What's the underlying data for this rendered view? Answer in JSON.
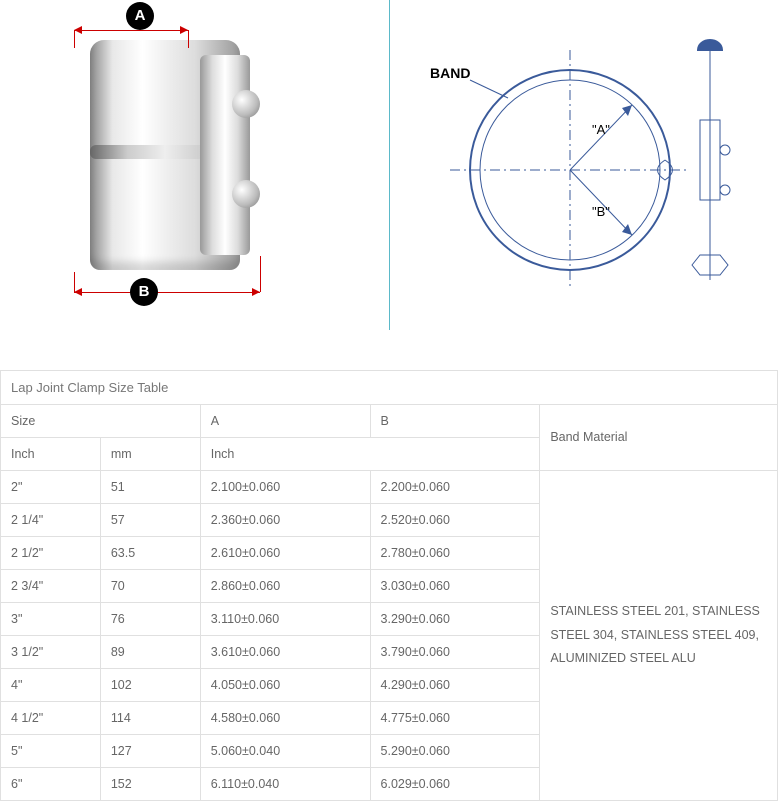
{
  "diagram": {
    "labelA": "A",
    "labelB": "B",
    "bandLabel": "BAND",
    "innerA": "\"A\"",
    "innerB": "\"B\"",
    "arrow_color": "#c00",
    "label_bg": "#000",
    "label_fg": "#fff",
    "diagram_stroke": "#3a5a9a",
    "divider_color": "#5bb9c9"
  },
  "table": {
    "title": "Lap Joint Clamp Size Table",
    "headers": {
      "size": "Size",
      "A": "A",
      "B": "B",
      "material": "Band Material",
      "inch": "Inch",
      "mm": "mm",
      "inch2": "Inch"
    },
    "material": "STAINLESS STEEL 201, STAINLESS STEEL 304, STAINLESS STEEL 409, ALUMINIZED STEEL ALU",
    "rows": [
      {
        "inch": "2\"",
        "mm": "51",
        "A": "2.100±0.060",
        "B": "2.200±0.060"
      },
      {
        "inch": "2 1/4\"",
        "mm": "57",
        "A": "2.360±0.060",
        "B": "2.520±0.060"
      },
      {
        "inch": "2 1/2\"",
        "mm": "63.5",
        "A": "2.610±0.060",
        "B": "2.780±0.060"
      },
      {
        "inch": "2 3/4\"",
        "mm": "70",
        "A": "2.860±0.060",
        "B": "3.030±0.060"
      },
      {
        "inch": "3\"",
        "mm": "76",
        "A": "3.110±0.060",
        "B": "3.290±0.060"
      },
      {
        "inch": "3 1/2\"",
        "mm": "89",
        "A": "3.610±0.060",
        "B": "3.790±0.060"
      },
      {
        "inch": "4\"",
        "mm": "102",
        "A": "4.050±0.060",
        "B": "4.290±0.060"
      },
      {
        "inch": "4 1/2\"",
        "mm": "114",
        "A": "4.580±0.060",
        "B": "4.775±0.060"
      },
      {
        "inch": "5\"",
        "mm": "127",
        "A": "5.060±0.040",
        "B": "5.290±0.060"
      },
      {
        "inch": "6\"",
        "mm": "152",
        "A": "6.110±0.040",
        "B": "6.029±0.060"
      }
    ],
    "border_color": "#e0e0e0",
    "text_color": "#666666",
    "font_size": 12.5
  }
}
